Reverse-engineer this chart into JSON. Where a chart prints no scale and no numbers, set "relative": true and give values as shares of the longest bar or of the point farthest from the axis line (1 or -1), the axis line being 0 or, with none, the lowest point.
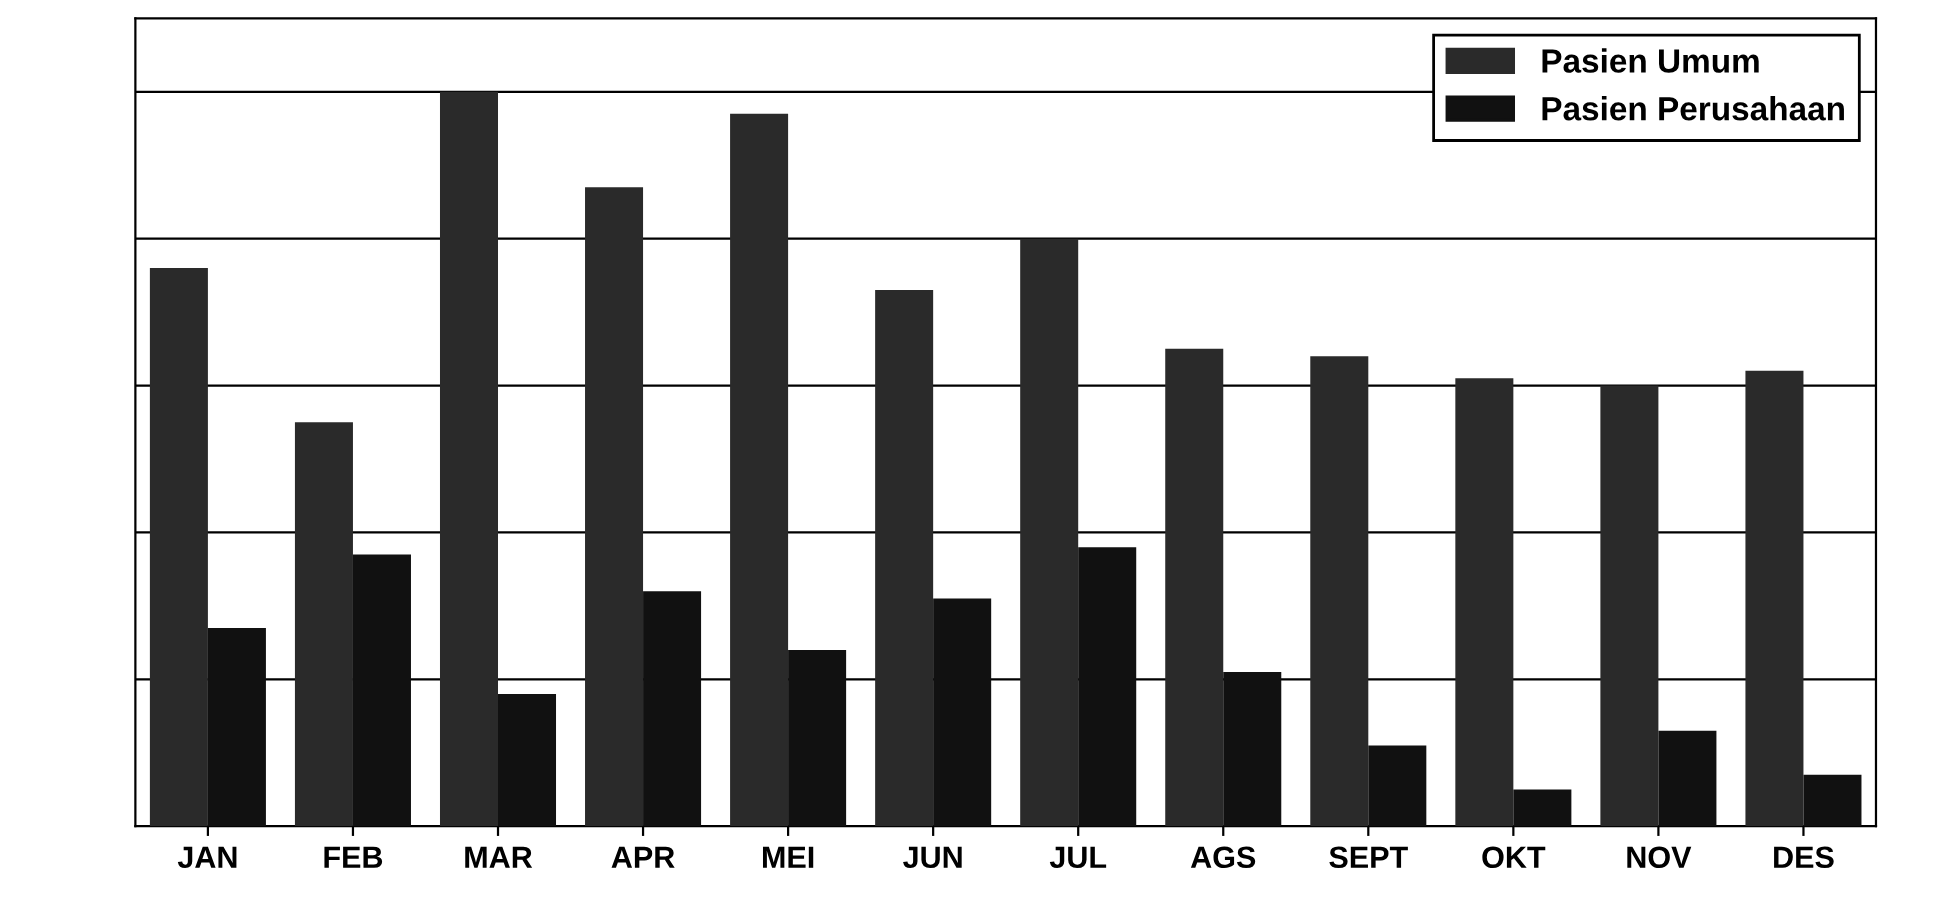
{
  "chart_data": {
    "type": "bar",
    "relative": true,
    "grid": "y",
    "legend": "top right",
    "categories": [
      "JAN",
      "FEB",
      "MAR",
      "APR",
      "MEI",
      "JUN",
      "JUL",
      "AGS",
      "SEPT",
      "OKT",
      "NOV",
      "DES"
    ],
    "series": [
      {
        "name": "Pasien Umum",
        "color": "#2a2a2a",
        "values": [
          0.76,
          0.55,
          1.0,
          0.87,
          0.97,
          0.73,
          0.8,
          0.65,
          0.64,
          0.61,
          0.6,
          0.62
        ]
      },
      {
        "name": "Pasien Perusahaan",
        "color": "#111111",
        "values": [
          0.27,
          0.37,
          0.18,
          0.32,
          0.24,
          0.31,
          0.38,
          0.21,
          0.11,
          0.05,
          0.13,
          0.07
        ]
      }
    ]
  }
}
